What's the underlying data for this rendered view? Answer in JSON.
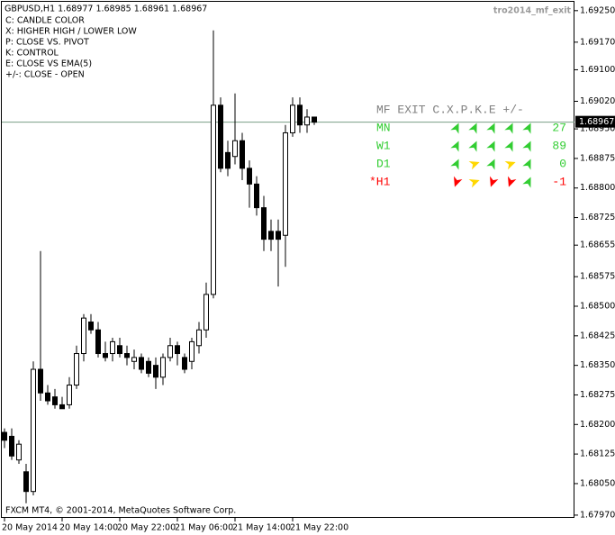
{
  "chart_data": {
    "type": "candlestick",
    "title": "GBPUSD,H1  1.68977 1.68985 1.68961 1.68967",
    "indicator_name": "tro2014_mf_exit",
    "legend_lines": [
      "C: CANDLE COLOR",
      "X: HIGHER HIGH / LOWER LOW",
      "P: CLOSE VS. PIVOT",
      "K: CONTROL",
      "E: CLOSE VS EMA(5)",
      "+/-: CLOSE - OPEN"
    ],
    "footer": "FXCM MT4, © 2001-2014, MetaQuotes Software Corp.",
    "categories": [
      "20 May 2014",
      null,
      null,
      null,
      null,
      null,
      null,
      null,
      "20 May 14:00",
      null,
      null,
      null,
      null,
      null,
      null,
      null,
      "20 May 22:00",
      null,
      null,
      null,
      null,
      null,
      null,
      null,
      "21 May 06:00",
      null,
      null,
      null,
      null,
      null,
      null,
      null,
      "21 May 14:00",
      null,
      null,
      null,
      null,
      null,
      null,
      null,
      "21 May 22:00",
      null,
      null,
      null
    ],
    "open": [
      1.6818,
      1.6817,
      1.6811,
      1.6808,
      1.6803,
      1.6834,
      1.6828,
      1.6827,
      1.6825,
      1.6825,
      1.683,
      1.6838,
      1.6846,
      1.6844,
      1.6838,
      1.6838,
      1.684,
      1.6838,
      1.6836,
      1.6837,
      1.6836,
      1.6835,
      1.6832,
      1.6837,
      1.684,
      1.6837,
      1.6836,
      1.684,
      1.6844,
      1.6853,
      1.6901,
      1.6889,
      1.6888,
      1.6892,
      1.6885,
      1.6881,
      1.6875,
      1.6869,
      1.6869,
      1.6868,
      1.6894,
      1.6901,
      1.6896,
      1.6898
    ],
    "high": [
      1.6819,
      1.6819,
      1.6816,
      1.681,
      1.6836,
      1.6864,
      1.683,
      1.6829,
      1.6827,
      1.6832,
      1.684,
      1.6848,
      1.6848,
      1.6846,
      1.6841,
      1.6842,
      1.6842,
      1.684,
      1.6839,
      1.6838,
      1.6837,
      1.6837,
      1.6838,
      1.6842,
      1.6841,
      1.6838,
      1.6842,
      1.6846,
      1.6856,
      1.692,
      1.6903,
      1.6892,
      1.6904,
      1.6894,
      1.6887,
      1.6883,
      1.6878,
      1.6872,
      1.6872,
      1.6896,
      1.6903,
      1.6903,
      1.69,
      1.6898
    ],
    "low": [
      1.6814,
      1.6811,
      1.681,
      1.68,
      1.6802,
      1.6826,
      1.6825,
      1.6824,
      1.6824,
      1.6824,
      1.6829,
      1.6836,
      1.6843,
      1.6837,
      1.6836,
      1.6836,
      1.6837,
      1.6835,
      1.6834,
      1.6833,
      1.6832,
      1.6829,
      1.683,
      1.6836,
      1.6835,
      1.6833,
      1.6834,
      1.6838,
      1.6842,
      1.6852,
      1.6884,
      1.6883,
      1.6886,
      1.6882,
      1.6875,
      1.6873,
      1.6864,
      1.6864,
      1.6855,
      1.686,
      1.6893,
      1.6894,
      1.6894,
      1.6896
    ],
    "close": [
      1.6816,
      1.6812,
      1.6815,
      1.6803,
      1.6834,
      1.6828,
      1.6826,
      1.6825,
      1.6824,
      1.683,
      1.6838,
      1.6847,
      1.6844,
      1.6838,
      1.6837,
      1.6841,
      1.6838,
      1.6837,
      1.6837,
      1.6834,
      1.6833,
      1.6832,
      1.6837,
      1.684,
      1.6838,
      1.6834,
      1.6841,
      1.6844,
      1.6853,
      1.6901,
      1.6885,
      1.6885,
      1.6892,
      1.6885,
      1.6881,
      1.6875,
      1.6867,
      1.6867,
      1.6867,
      1.6894,
      1.6901,
      1.6896,
      1.6898,
      1.68967
    ],
    "last_price": 1.68967,
    "ylim": [
      1.67963,
      1.69277
    ],
    "yticks": [
      {
        "value": 1.6925,
        "label": "1.69250"
      },
      {
        "value": 1.6917,
        "label": "1.69170"
      },
      {
        "value": 1.691,
        "label": "1.69100"
      },
      {
        "value": 1.6902,
        "label": "1.69020"
      },
      {
        "value": 1.6895,
        "label": "1.68950"
      },
      1.68875,
      {
        "value": 1.688,
        "label": "1.68800"
      },
      1.68725,
      1.68655,
      1.68575,
      {
        "value": 1.685,
        "label": "1.68500"
      },
      1.68425,
      {
        "value": 1.6835,
        "label": "1.68350"
      },
      1.68275,
      {
        "value": 1.682,
        "label": "1.68200"
      },
      1.68125,
      {
        "value": 1.6805,
        "label": "1.68050"
      },
      {
        "value": 1.6797,
        "label": "1.67970"
      }
    ],
    "panel": {
      "header": "MF EXIT C.X.P.K.E +/-",
      "rows": [
        {
          "label": "MN",
          "value": 27,
          "color": "#32cd32"
        },
        {
          "label": "W1",
          "value": 89,
          "color": "#32cd32"
        },
        {
          "label": "D1",
          "value": 0,
          "color": "#32cd32"
        },
        {
          "label": "*H1",
          "value": -1,
          "color": "#ff0000"
        }
      ]
    }
  }
}
